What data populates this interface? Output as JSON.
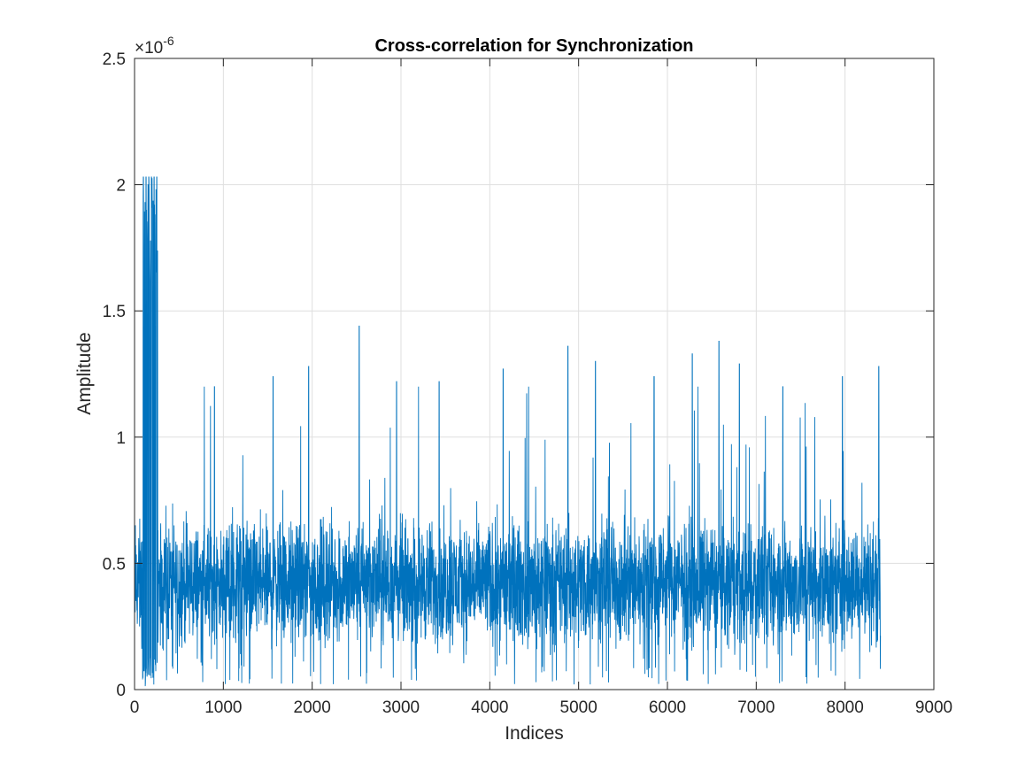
{
  "chart_data": {
    "type": "line",
    "title": "Cross-correlation for Synchronization",
    "xlabel": "Indices",
    "ylabel": "Amplitude",
    "y_exponent_label": "×10",
    "y_exponent_power": "-6",
    "xlim": [
      0,
      9000
    ],
    "ylim": [
      0,
      2.5
    ],
    "x_ticks": [
      0,
      1000,
      2000,
      3000,
      4000,
      5000,
      6000,
      7000,
      8000,
      9000
    ],
    "x_tick_labels": [
      "0",
      "1000",
      "2000",
      "3000",
      "4000",
      "5000",
      "6000",
      "7000",
      "8000",
      "9000"
    ],
    "y_ticks": [
      0,
      0.5,
      1,
      1.5,
      2,
      2.5
    ],
    "y_tick_labels": [
      "0",
      "0.5",
      "1",
      "1.5",
      "2",
      "2.5"
    ],
    "grid": true,
    "series": [
      {
        "color": "#0072bd",
        "x_range": [
          1,
          8400
        ],
        "baseline_mean": 0.42,
        "typical_band": [
          0.1,
          0.8
        ],
        "peaks": [
          {
            "x": 100,
            "y": 2.03
          },
          {
            "x": 130,
            "y": 2.03
          },
          {
            "x": 160,
            "y": 2.03
          },
          {
            "x": 190,
            "y": 2.03
          },
          {
            "x": 220,
            "y": 2.03
          },
          {
            "x": 250,
            "y": 2.03
          },
          {
            "x": 900,
            "y": 1.2
          },
          {
            "x": 1560,
            "y": 1.24
          },
          {
            "x": 1960,
            "y": 1.28
          },
          {
            "x": 2530,
            "y": 1.44
          },
          {
            "x": 2950,
            "y": 1.22
          },
          {
            "x": 3430,
            "y": 1.22
          },
          {
            "x": 4150,
            "y": 1.27
          },
          {
            "x": 4880,
            "y": 1.36
          },
          {
            "x": 5190,
            "y": 1.3
          },
          {
            "x": 5850,
            "y": 1.24
          },
          {
            "x": 6280,
            "y": 1.33
          },
          {
            "x": 6580,
            "y": 1.38
          },
          {
            "x": 6810,
            "y": 1.29
          },
          {
            "x": 7300,
            "y": 1.2
          },
          {
            "x": 7970,
            "y": 1.24
          },
          {
            "x": 8380,
            "y": 1.28
          }
        ]
      }
    ]
  }
}
